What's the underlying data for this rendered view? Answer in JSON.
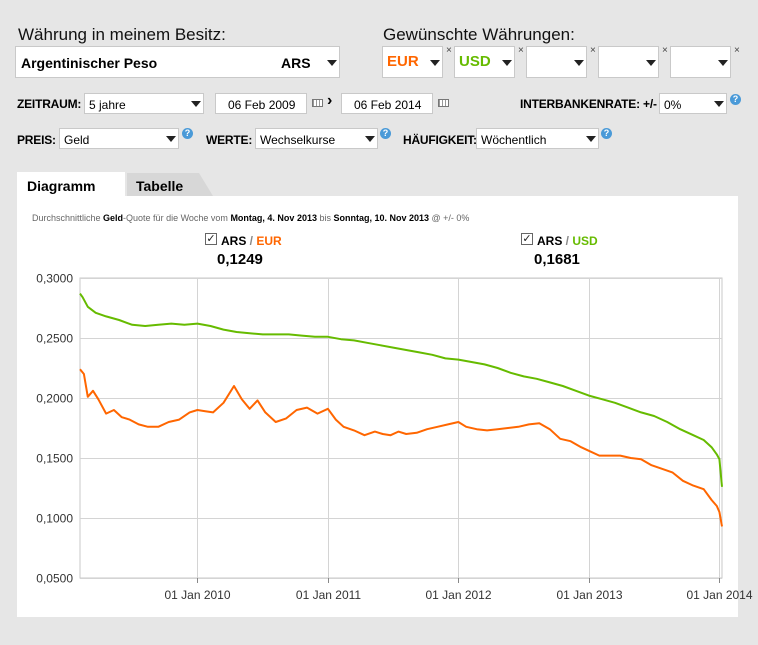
{
  "header": {
    "owned_label": "Währung in meinem Besitz:",
    "wanted_label": "Gewünschte Währungen:"
  },
  "owned_currency": {
    "name": "Argentinischer Peso",
    "code": "ARS"
  },
  "wanted_currencies": [
    {
      "code": "EUR",
      "color": "#ff6600"
    },
    {
      "code": "USD",
      "color": "#66bb00"
    },
    {
      "code": ""
    },
    {
      "code": ""
    },
    {
      "code": ""
    }
  ],
  "remove_glyph": "×",
  "filters": {
    "zeitraum_label": "ZEITRAUM:",
    "zeitraum_value": "5 jahre",
    "date_from": "06 Feb 2009",
    "date_to": "06 Feb 2014",
    "date_sep": "›",
    "interbank_label": "INTERBANKENRATE: +/-",
    "interbank_value": "0%",
    "preis_label": "PREIS:",
    "preis_value": "Geld",
    "werte_label": "WERTE:",
    "werte_value": "Wechselkurse",
    "haeufigkeit_label": "HÄUFIGKEIT:",
    "haeufigkeit_value": "Wöchentlich",
    "help_glyph": "?"
  },
  "tabs": [
    {
      "label": "Diagramm",
      "active": true
    },
    {
      "label": "Tabelle",
      "active": false
    }
  ],
  "subtitle": {
    "p1": "Durchschnittliche ",
    "p2": "Geld",
    "p3": "-Quote für die Woche vom ",
    "p4": "Montag, 4. Nov 2013",
    "p5": " bis ",
    "p6": "Sonntag, 10. Nov 2013",
    "p7": " @ +/- 0%"
  },
  "legend": [
    {
      "base": "ARS",
      "sep": " / ",
      "quote": "EUR",
      "value": "0,1249",
      "checked": "✓",
      "color": "#ff6600"
    },
    {
      "base": "ARS",
      "sep": " / ",
      "quote": "USD",
      "value": "0,1681",
      "checked": "✓",
      "color": "#66bb00"
    }
  ],
  "chart_data": {
    "type": "line",
    "title": "",
    "xlabel": "",
    "ylabel": "",
    "ylim": [
      0.05,
      0.3
    ],
    "xlim": [
      2009.1,
      2014.02
    ],
    "y_ticks": [
      "0,0500",
      "0,1000",
      "0,1500",
      "0,2000",
      "0,2500",
      "0,3000"
    ],
    "x_ticks": [
      {
        "label": "01 Jan 2010",
        "x": 2010.0
      },
      {
        "label": "01 Jan 2011",
        "x": 2011.0
      },
      {
        "label": "01 Jan 2012",
        "x": 2012.0
      },
      {
        "label": "01 Jan 2013",
        "x": 2013.0
      },
      {
        "label": "01 Jan 2014",
        "x": 2014.0
      }
    ],
    "grid": true,
    "series": [
      {
        "name": "ARS/EUR",
        "color": "#ff6600",
        "x": [
          2009.1,
          2009.13,
          2009.16,
          2009.2,
          2009.24,
          2009.3,
          2009.36,
          2009.42,
          2009.48,
          2009.55,
          2009.62,
          2009.7,
          2009.78,
          2009.86,
          2009.94,
          2010.0,
          2010.06,
          2010.12,
          2010.2,
          2010.28,
          2010.34,
          2010.4,
          2010.46,
          2010.52,
          2010.6,
          2010.68,
          2010.76,
          2010.84,
          2010.92,
          2011.0,
          2011.06,
          2011.12,
          2011.2,
          2011.28,
          2011.36,
          2011.42,
          2011.48,
          2011.54,
          2011.6,
          2011.68,
          2011.76,
          2011.84,
          2011.92,
          2012.0,
          2012.06,
          2012.14,
          2012.22,
          2012.3,
          2012.38,
          2012.46,
          2012.54,
          2012.62,
          2012.7,
          2012.78,
          2012.86,
          2012.94,
          2013.0,
          2013.08,
          2013.16,
          2013.24,
          2013.32,
          2013.4,
          2013.48,
          2013.56,
          2013.64,
          2013.72,
          2013.8,
          2013.88,
          2013.94,
          2013.98,
          2014.0,
          2014.02
        ],
        "values": [
          0.224,
          0.22,
          0.201,
          0.206,
          0.199,
          0.187,
          0.19,
          0.184,
          0.182,
          0.178,
          0.176,
          0.176,
          0.18,
          0.182,
          0.188,
          0.19,
          0.189,
          0.188,
          0.196,
          0.21,
          0.199,
          0.191,
          0.198,
          0.188,
          0.18,
          0.183,
          0.19,
          0.192,
          0.187,
          0.191,
          0.182,
          0.176,
          0.173,
          0.169,
          0.172,
          0.17,
          0.169,
          0.172,
          0.17,
          0.171,
          0.174,
          0.176,
          0.178,
          0.18,
          0.176,
          0.174,
          0.173,
          0.174,
          0.175,
          0.176,
          0.178,
          0.179,
          0.174,
          0.166,
          0.164,
          0.159,
          0.156,
          0.152,
          0.152,
          0.152,
          0.15,
          0.149,
          0.144,
          0.141,
          0.138,
          0.131,
          0.127,
          0.124,
          0.115,
          0.11,
          0.105,
          0.093
        ]
      },
      {
        "name": "ARS/USD",
        "color": "#66bb00",
        "x": [
          2009.1,
          2009.12,
          2009.16,
          2009.22,
          2009.3,
          2009.4,
          2009.5,
          2009.6,
          2009.7,
          2009.8,
          2009.9,
          2010.0,
          2010.1,
          2010.2,
          2010.3,
          2010.4,
          2010.5,
          2010.6,
          2010.7,
          2010.8,
          2010.9,
          2011.0,
          2011.1,
          2011.2,
          2011.3,
          2011.4,
          2011.5,
          2011.6,
          2011.7,
          2011.8,
          2011.9,
          2012.0,
          2012.1,
          2012.2,
          2012.3,
          2012.4,
          2012.5,
          2012.6,
          2012.7,
          2012.8,
          2012.9,
          2013.0,
          2013.1,
          2013.2,
          2013.3,
          2013.4,
          2013.5,
          2013.6,
          2013.7,
          2013.8,
          2013.88,
          2013.94,
          2013.98,
          2014.0,
          2014.02
        ],
        "values": [
          0.287,
          0.284,
          0.276,
          0.271,
          0.268,
          0.265,
          0.261,
          0.26,
          0.261,
          0.262,
          0.261,
          0.262,
          0.26,
          0.257,
          0.255,
          0.254,
          0.253,
          0.253,
          0.253,
          0.252,
          0.251,
          0.251,
          0.249,
          0.248,
          0.246,
          0.244,
          0.242,
          0.24,
          0.238,
          0.236,
          0.233,
          0.232,
          0.23,
          0.228,
          0.225,
          0.221,
          0.218,
          0.216,
          0.213,
          0.21,
          0.206,
          0.202,
          0.199,
          0.196,
          0.192,
          0.188,
          0.185,
          0.18,
          0.174,
          0.169,
          0.165,
          0.159,
          0.153,
          0.149,
          0.126
        ]
      }
    ]
  }
}
